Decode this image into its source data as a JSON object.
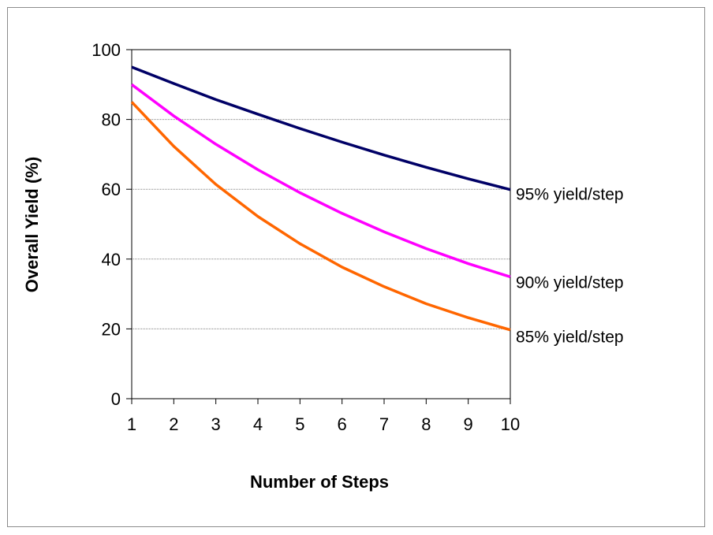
{
  "chart_data": {
    "type": "line",
    "title": "",
    "xlabel": "Number of Steps",
    "ylabel": "Overall Yield (%)",
    "x": [
      1,
      2,
      3,
      4,
      5,
      6,
      7,
      8,
      9,
      10
    ],
    "xlim": [
      1,
      10
    ],
    "ylim": [
      0,
      100
    ],
    "x_ticks": [
      "1",
      "2",
      "3",
      "4",
      "5",
      "6",
      "7",
      "8",
      "9",
      "10"
    ],
    "y_ticks": [
      "0",
      "20",
      "40",
      "60",
      "80",
      "100"
    ],
    "grid": "horizontal dotted",
    "legend": "none (labels at line ends)",
    "series": [
      {
        "name": "95% yield/step",
        "color": "#000066",
        "values": [
          95,
          90.3,
          85.7,
          81.5,
          77.4,
          73.5,
          69.8,
          66.3,
          63.0,
          59.9
        ]
      },
      {
        "name": "90% yield/step",
        "color": "#ff00ff",
        "values": [
          90,
          81,
          72.9,
          65.6,
          59.0,
          53.1,
          47.8,
          43.0,
          38.7,
          34.9
        ]
      },
      {
        "name": "85% yield/step",
        "color": "#ff6600",
        "values": [
          85,
          72.3,
          61.4,
          52.2,
          44.4,
          37.7,
          32.1,
          27.2,
          23.2,
          19.7
        ]
      }
    ]
  }
}
